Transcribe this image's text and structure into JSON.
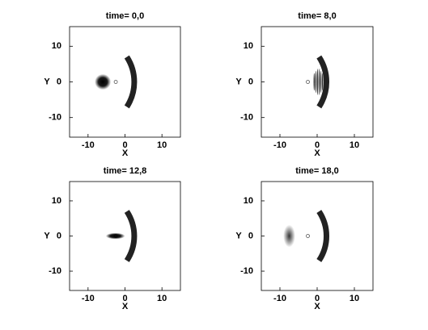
{
  "chart_data": [
    {
      "type": "image",
      "title": "time= 0,0",
      "xlabel": "X",
      "ylabel": "Y",
      "xlim": [
        -15,
        15
      ],
      "ylim": [
        -15.5,
        15.5
      ],
      "xticks": [
        -10,
        0,
        10
      ],
      "yticks": [
        -10,
        0,
        10
      ]
    },
    {
      "type": "image",
      "title": "time= 8,0",
      "xlabel": "X",
      "ylabel": "Y",
      "xlim": [
        -15,
        15
      ],
      "ylim": [
        -15.5,
        15.5
      ],
      "xticks": [
        -10,
        0,
        10
      ],
      "yticks": [
        -10,
        0,
        10
      ]
    },
    {
      "type": "image",
      "title": "time= 12,8",
      "xlabel": "X",
      "ylabel": "Y",
      "xlim": [
        -15,
        15
      ],
      "ylim": [
        -15.5,
        15.5
      ],
      "xticks": [
        -10,
        0,
        10
      ],
      "yticks": [
        -10,
        0,
        10
      ]
    },
    {
      "type": "image",
      "title": "time= 18,0",
      "xlabel": "X",
      "ylabel": "Y",
      "xlim": [
        -15,
        15
      ],
      "ylim": [
        -15.5,
        15.5
      ],
      "xticks": [
        -10,
        0,
        10
      ],
      "yticks": [
        -10,
        0,
        10
      ]
    }
  ]
}
